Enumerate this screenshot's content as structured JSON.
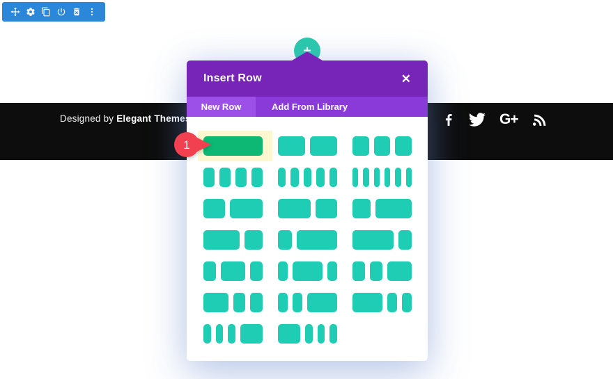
{
  "toolbar": {
    "icons": [
      "move",
      "settings",
      "duplicate",
      "disable",
      "delete",
      "expand-menu"
    ]
  },
  "add_row_button": {
    "symbol": "+"
  },
  "modal": {
    "title": "Insert Row",
    "close_symbol": "✕",
    "tabs": [
      {
        "label": "New Row",
        "active": true
      },
      {
        "label": "Add From Library",
        "active": false
      }
    ],
    "layouts": [
      {
        "name": "1 column",
        "ratios": [
          1
        ],
        "highlighted": true
      },
      {
        "name": "1/2 + 1/2",
        "ratios": [
          1,
          1
        ]
      },
      {
        "name": "1/3 + 1/3 + 1/3",
        "ratios": [
          1,
          1,
          1
        ]
      },
      {
        "name": "1/4 + 1/4 + 1/4 + 1/4",
        "ratios": [
          1,
          1,
          1,
          1
        ]
      },
      {
        "name": "1/5 x 5",
        "ratios": [
          1,
          1,
          1,
          1,
          1
        ]
      },
      {
        "name": "1/6 x 6",
        "ratios": [
          1,
          1,
          1,
          1,
          1,
          1
        ]
      },
      {
        "name": "2/5 + 3/5",
        "ratios": [
          2,
          3
        ]
      },
      {
        "name": "3/5 + 2/5",
        "ratios": [
          3,
          2
        ]
      },
      {
        "name": "1/3 + 2/3",
        "ratios": [
          1,
          2
        ]
      },
      {
        "name": "2/3 + 1/3",
        "ratios": [
          2,
          1
        ]
      },
      {
        "name": "1/4 + 3/4",
        "ratios": [
          1,
          3
        ]
      },
      {
        "name": "3/4 + 1/4",
        "ratios": [
          3,
          1
        ]
      },
      {
        "name": "1/4 + 1/2 + 1/4",
        "ratios": [
          1,
          2,
          1
        ]
      },
      {
        "name": "1/5 + 3/5 + 1/5",
        "ratios": [
          1,
          3,
          1
        ]
      },
      {
        "name": "1/4 + 1/4 + 1/2",
        "ratios": [
          1,
          1,
          2
        ]
      },
      {
        "name": "1/2 + 1/4 + 1/4",
        "ratios": [
          2,
          1,
          1
        ]
      },
      {
        "name": "1/5 + 1/5 + 3/5",
        "ratios": [
          1,
          1,
          3
        ]
      },
      {
        "name": "3/5 + 1/5 + 1/5",
        "ratios": [
          3,
          1,
          1
        ]
      },
      {
        "name": "1/6 + 1/6 + 1/6 + 1/2",
        "ratios": [
          1,
          1,
          1,
          3
        ]
      },
      {
        "name": "1/2 + 1/6 + 1/6 + 1/6",
        "ratios": [
          3,
          1,
          1,
          1
        ]
      }
    ]
  },
  "annotation": {
    "label": "1"
  },
  "footer": {
    "credits": {
      "prefix": "Designed by ",
      "brand": "Elegant Themes",
      "suffix": " |"
    },
    "social_icons": [
      "facebook",
      "twitter",
      "google-plus",
      "rss"
    ],
    "google_plus_text": "G+"
  },
  "colors": {
    "toolbar_blue": "#2b87da",
    "modal_header_purple": "#7724b8",
    "modal_tabbar_purple": "#8a3ad8",
    "modal_active_tab_purple": "#9d50e8",
    "block_teal": "#1ecdb4",
    "block_hover_green": "#0cb873",
    "highlight_yellow": "#fdf7cf",
    "badge_red": "#f14050",
    "add_button_teal": "#29cbac",
    "footer_black": "#0d0d0d"
  }
}
